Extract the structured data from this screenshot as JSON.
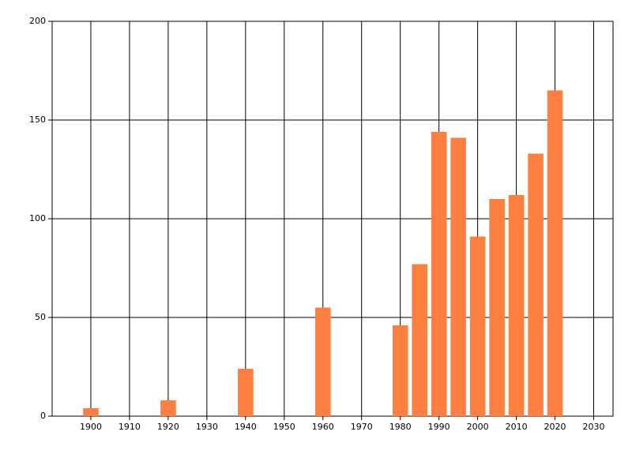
{
  "chart_data": {
    "type": "bar",
    "x": [
      1900,
      1920,
      1940,
      1960,
      1980,
      1985,
      1990,
      1995,
      2000,
      2005,
      2010,
      2015,
      2020
    ],
    "values": [
      4,
      8,
      24,
      55,
      46,
      77,
      144,
      141,
      91,
      110,
      112,
      133,
      165
    ],
    "color": "#ff7f41",
    "xlim": [
      1890,
      2035
    ],
    "xticks": [
      1900,
      1910,
      1920,
      1930,
      1940,
      1950,
      1960,
      1970,
      1980,
      1990,
      2000,
      2010,
      2020,
      2030
    ],
    "ylim": [
      0,
      200
    ],
    "yticks": [
      0,
      50,
      100,
      150,
      200
    ],
    "grid": true
  }
}
